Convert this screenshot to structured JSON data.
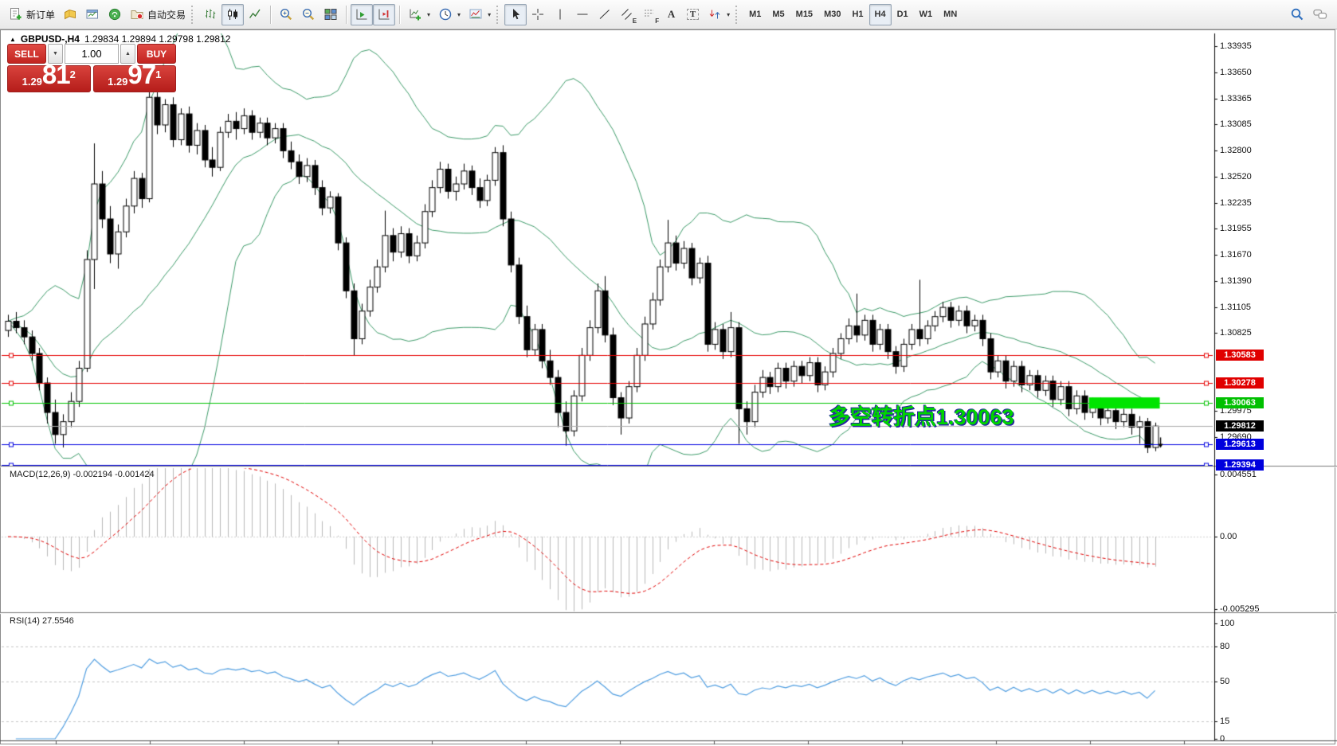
{
  "toolbar": {
    "new_order_label": "新订单",
    "autotrading_label": "自动交易",
    "timeframes": [
      "M1",
      "M5",
      "M15",
      "M30",
      "H1",
      "H4",
      "D1",
      "W1",
      "MN"
    ],
    "active_timeframe": "H4"
  },
  "glyphs": {
    "collapse": "▲",
    "spinner_up": "▲",
    "spinner_down": "▼",
    "caret": "▾",
    "tool_letters": {
      "channel": "E",
      "fibonacci": "F",
      "text": "A",
      "label": "T"
    }
  },
  "chart": {
    "title_symbol": "GBPUSD-,H4",
    "title_ohlc": "1.29834 1.29894 1.29798 1.29812"
  },
  "trade_panel": {
    "sell_label": "SELL",
    "buy_label": "BUY",
    "volume": "1.00",
    "sell_price_small": "1.29",
    "sell_price_big": "81",
    "sell_price_sup": "2",
    "buy_price_small": "1.29",
    "buy_price_big": "97",
    "buy_price_sup": "1"
  },
  "indicators": {
    "macd": {
      "name": "MACD(12,26,9)",
      "value_main": "-0.002194",
      "value_signal": "-0.001424"
    },
    "rsi": {
      "name": "RSI(14)",
      "value": "27.5546"
    }
  },
  "annotation": {
    "text": "多空转折点1.30063",
    "color": "#00d400"
  },
  "axis": {
    "price_ticks": [
      {
        "value": 1.33935,
        "label": "1.33935"
      },
      {
        "value": 1.3365,
        "label": "1.33650"
      },
      {
        "value": 1.33365,
        "label": "1.33365"
      },
      {
        "value": 1.33085,
        "label": "1.33085"
      },
      {
        "value": 1.328,
        "label": "1.32800"
      },
      {
        "value": 1.3252,
        "label": "1.32520"
      },
      {
        "value": 1.32235,
        "label": "1.32235"
      },
      {
        "value": 1.31955,
        "label": "1.31955"
      },
      {
        "value": 1.3167,
        "label": "1.31670"
      },
      {
        "value": 1.3139,
        "label": "1.31390"
      },
      {
        "value": 1.31105,
        "label": "1.31105"
      },
      {
        "value": 1.30825,
        "label": "1.30825"
      },
      {
        "value": 1.29975,
        "label": "1.29975"
      },
      {
        "value": 1.2969,
        "label": "1.29690"
      }
    ],
    "macd_ticks": [
      {
        "value": 0.004551,
        "label": "0.004551"
      },
      {
        "value": 0,
        "label": "0.00"
      },
      {
        "value": -0.005295,
        "label": "-0.005295"
      }
    ],
    "rsi_ticks": [
      {
        "value": 100,
        "label": "100"
      },
      {
        "value": 80,
        "label": "80"
      },
      {
        "value": 50,
        "label": "50"
      },
      {
        "value": 15,
        "label": "15"
      },
      {
        "value": 0,
        "label": "0"
      }
    ]
  },
  "chart_data": {
    "type": "candlestick",
    "symbol": "GBPUSD-",
    "period": "H4",
    "current_bid": 1.29812,
    "current_ask_display": "1.29971",
    "ohlc_current_bar": {
      "open": 1.29834,
      "high": 1.29894,
      "low": 1.29798,
      "close": 1.29812
    },
    "overlays": {
      "bollinger": {
        "period": 20,
        "deviation": 2,
        "color": "#3c9a68"
      }
    },
    "levels": [
      {
        "price": 1.30583,
        "color": "#e60000",
        "label": "1.30583",
        "label_bg": "#e00000",
        "kind": "resistance"
      },
      {
        "price": 1.30278,
        "color": "#e60000",
        "label": "1.30278",
        "label_bg": "#e00000",
        "kind": "resistance"
      },
      {
        "price": 1.30063,
        "color": "#00c300",
        "label": "1.30063",
        "label_bg": "#00c000",
        "kind": "pivot"
      },
      {
        "price": 1.29812,
        "color": "#ababab",
        "label": "1.29812",
        "label_bg": "#000000",
        "kind": "current-price"
      },
      {
        "price": 1.29613,
        "color": "#0000e0",
        "label": "1.29613",
        "label_bg": "#0000dd",
        "kind": "support"
      },
      {
        "price": 1.29394,
        "color": "#0000e0",
        "label": "1.29394",
        "label_bg": "#0000dd",
        "kind": "support"
      }
    ],
    "highlight_box": {
      "price": 1.30063,
      "from_candle": 138,
      "to_candle": 146,
      "color": "#00e400"
    },
    "marker": {
      "type": "arrow-down",
      "candle": 146,
      "price": 1.2962
    },
    "macd": {
      "params": [
        12,
        26,
        9
      ],
      "current_main": -0.002194,
      "current_signal": -0.001424,
      "range": [
        -0.005295,
        0.004551
      ],
      "histogram_color": "#b9b9b9",
      "signal_color": "#e00000"
    },
    "rsi": {
      "period": 14,
      "current": 27.5546,
      "range": [
        0,
        100
      ],
      "levels": [
        80,
        50,
        15
      ],
      "color": "#4f9de0"
    },
    "candles": [
      [
        1.3085,
        1.3102,
        1.3078,
        1.3095
      ],
      [
        1.3095,
        1.3105,
        1.3082,
        1.3088
      ],
      [
        1.3088,
        1.3096,
        1.307,
        1.3078
      ],
      [
        1.3078,
        1.3085,
        1.3052,
        1.306
      ],
      [
        1.306,
        1.3066,
        1.302,
        1.3028
      ],
      [
        1.3028,
        1.3034,
        1.2984,
        1.2996
      ],
      [
        1.2996,
        1.301,
        1.2962,
        1.2972
      ],
      [
        1.2972,
        1.2994,
        1.2958,
        1.2986
      ],
      [
        1.2986,
        1.3018,
        1.298,
        1.3008
      ],
      [
        1.3008,
        1.3052,
        1.3002,
        1.3044
      ],
      [
        1.3044,
        1.3172,
        1.304,
        1.3162
      ],
      [
        1.3162,
        1.3288,
        1.313,
        1.3244
      ],
      [
        1.3244,
        1.3258,
        1.3196,
        1.3206
      ],
      [
        1.3206,
        1.322,
        1.3158,
        1.3168
      ],
      [
        1.3168,
        1.32,
        1.3152,
        1.3192
      ],
      [
        1.3192,
        1.3228,
        1.3186,
        1.322
      ],
      [
        1.322,
        1.3258,
        1.3212,
        1.325
      ],
      [
        1.325,
        1.3256,
        1.3218,
        1.3228
      ],
      [
        1.3228,
        1.3347,
        1.3224,
        1.3338
      ],
      [
        1.3338,
        1.3344,
        1.3298,
        1.3308
      ],
      [
        1.3308,
        1.3336,
        1.33,
        1.333
      ],
      [
        1.333,
        1.3338,
        1.3284,
        1.3292
      ],
      [
        1.3292,
        1.3326,
        1.3286,
        1.332
      ],
      [
        1.332,
        1.3328,
        1.3278,
        1.3286
      ],
      [
        1.3286,
        1.331,
        1.3276,
        1.3302
      ],
      [
        1.3302,
        1.3308,
        1.3262,
        1.327
      ],
      [
        1.327,
        1.3284,
        1.3252,
        1.3262
      ],
      [
        1.3262,
        1.3306,
        1.3258,
        1.33
      ],
      [
        1.33,
        1.332,
        1.3294,
        1.3312
      ],
      [
        1.3312,
        1.3322,
        1.3292,
        1.3304
      ],
      [
        1.3304,
        1.3326,
        1.3298,
        1.3318
      ],
      [
        1.3318,
        1.3324,
        1.3292,
        1.33
      ],
      [
        1.33,
        1.3316,
        1.3294,
        1.331
      ],
      [
        1.331,
        1.3316,
        1.3286,
        1.3294
      ],
      [
        1.3294,
        1.331,
        1.3288,
        1.3304
      ],
      [
        1.3304,
        1.331,
        1.3272,
        1.328
      ],
      [
        1.328,
        1.329,
        1.326,
        1.3268
      ],
      [
        1.3268,
        1.3276,
        1.3244,
        1.3252
      ],
      [
        1.3252,
        1.3272,
        1.3246,
        1.3264
      ],
      [
        1.3264,
        1.327,
        1.3232,
        1.324
      ],
      [
        1.324,
        1.3248,
        1.321,
        1.3218
      ],
      [
        1.3218,
        1.3236,
        1.3212,
        1.323
      ],
      [
        1.323,
        1.3234,
        1.3172,
        1.318
      ],
      [
        1.318,
        1.3186,
        1.312,
        1.3128
      ],
      [
        1.3128,
        1.3136,
        1.3058,
        1.3076
      ],
      [
        1.3076,
        1.3114,
        1.307,
        1.3106
      ],
      [
        1.3106,
        1.314,
        1.31,
        1.3132
      ],
      [
        1.3132,
        1.3162,
        1.3126,
        1.3154
      ],
      [
        1.3154,
        1.3215,
        1.3148,
        1.3188
      ],
      [
        1.3188,
        1.3196,
        1.316,
        1.317
      ],
      [
        1.317,
        1.3198,
        1.3164,
        1.319
      ],
      [
        1.319,
        1.3196,
        1.3158,
        1.3166
      ],
      [
        1.3166,
        1.3188,
        1.316,
        1.318
      ],
      [
        1.318,
        1.3222,
        1.3174,
        1.3214
      ],
      [
        1.3214,
        1.3248,
        1.3208,
        1.324
      ],
      [
        1.324,
        1.3268,
        1.3234,
        1.326
      ],
      [
        1.326,
        1.3266,
        1.3228,
        1.3236
      ],
      [
        1.3236,
        1.3252,
        1.3226,
        1.3244
      ],
      [
        1.3244,
        1.3266,
        1.3238,
        1.3258
      ],
      [
        1.3258,
        1.3264,
        1.3232,
        1.324
      ],
      [
        1.324,
        1.325,
        1.3218,
        1.3226
      ],
      [
        1.3226,
        1.3254,
        1.322,
        1.3248
      ],
      [
        1.3248,
        1.3284,
        1.3242,
        1.3278
      ],
      [
        1.3278,
        1.3286,
        1.3198,
        1.3206
      ],
      [
        1.3206,
        1.3214,
        1.3148,
        1.3156
      ],
      [
        1.3156,
        1.3164,
        1.3092,
        1.31
      ],
      [
        1.31,
        1.3112,
        1.3056,
        1.3064
      ],
      [
        1.3064,
        1.3092,
        1.3058,
        1.3086
      ],
      [
        1.3086,
        1.3092,
        1.3044,
        1.3052
      ],
      [
        1.3052,
        1.3064,
        1.3026,
        1.3034
      ],
      [
        1.3034,
        1.3042,
        1.298,
        1.2996
      ],
      [
        1.2996,
        1.3008,
        1.296,
        1.2976
      ],
      [
        1.2976,
        1.302,
        1.297,
        1.3014
      ],
      [
        1.3014,
        1.3066,
        1.3008,
        1.3058
      ],
      [
        1.3058,
        1.3096,
        1.3052,
        1.3088
      ],
      [
        1.3088,
        1.3136,
        1.3082,
        1.3128
      ],
      [
        1.3128,
        1.3144,
        1.3072,
        1.308
      ],
      [
        1.308,
        1.3088,
        1.3004,
        1.3012
      ],
      [
        1.3012,
        1.3018,
        1.2972,
        1.299
      ],
      [
        1.299,
        1.303,
        1.2984,
        1.3024
      ],
      [
        1.3024,
        1.3066,
        1.3018,
        1.3058
      ],
      [
        1.3058,
        1.31,
        1.3052,
        1.3092
      ],
      [
        1.3092,
        1.3126,
        1.3086,
        1.3118
      ],
      [
        1.3118,
        1.3162,
        1.3112,
        1.3154
      ],
      [
        1.3154,
        1.3205,
        1.3148,
        1.318
      ],
      [
        1.318,
        1.3188,
        1.315,
        1.3158
      ],
      [
        1.3158,
        1.3182,
        1.3152,
        1.3174
      ],
      [
        1.3174,
        1.318,
        1.3134,
        1.3142
      ],
      [
        1.3142,
        1.3164,
        1.3136,
        1.3158
      ],
      [
        1.3158,
        1.3166,
        1.3062,
        1.307
      ],
      [
        1.307,
        1.3094,
        1.3064,
        1.3086
      ],
      [
        1.3086,
        1.3092,
        1.3054,
        1.3062
      ],
      [
        1.3062,
        1.3105,
        1.3056,
        1.3088
      ],
      [
        1.3088,
        1.3094,
        1.2962,
        1.3
      ],
      [
        1.3,
        1.3008,
        1.2972,
        1.2986
      ],
      [
        1.2986,
        1.3026,
        1.298,
        1.3018
      ],
      [
        1.3018,
        1.3042,
        1.3012,
        1.3034
      ],
      [
        1.3034,
        1.304,
        1.3016,
        1.3024
      ],
      [
        1.3024,
        1.305,
        1.3018,
        1.3044
      ],
      [
        1.3044,
        1.305,
        1.3022,
        1.303
      ],
      [
        1.303,
        1.3052,
        1.3024,
        1.3046
      ],
      [
        1.3046,
        1.3052,
        1.3028,
        1.3036
      ],
      [
        1.3036,
        1.3056,
        1.303,
        1.305
      ],
      [
        1.305,
        1.3056,
        1.3018,
        1.3026
      ],
      [
        1.3026,
        1.3046,
        1.302,
        1.304
      ],
      [
        1.304,
        1.3066,
        1.3034,
        1.306
      ],
      [
        1.306,
        1.3082,
        1.3054,
        1.3076
      ],
      [
        1.3076,
        1.3098,
        1.307,
        1.309
      ],
      [
        1.309,
        1.3125,
        1.3072,
        1.308
      ],
      [
        1.308,
        1.3102,
        1.3074,
        1.3096
      ],
      [
        1.3096,
        1.3102,
        1.3062,
        1.307
      ],
      [
        1.307,
        1.3092,
        1.3064,
        1.3086
      ],
      [
        1.3086,
        1.3092,
        1.3054,
        1.3062
      ],
      [
        1.3062,
        1.3068,
        1.3038,
        1.3046
      ],
      [
        1.3046,
        1.3076,
        1.304,
        1.307
      ],
      [
        1.307,
        1.3092,
        1.3064,
        1.3086
      ],
      [
        1.3086,
        1.314,
        1.3068,
        1.3076
      ],
      [
        1.3076,
        1.3096,
        1.307,
        1.309
      ],
      [
        1.309,
        1.3106,
        1.3084,
        1.31
      ],
      [
        1.31,
        1.3116,
        1.3094,
        1.311
      ],
      [
        1.311,
        1.3116,
        1.3088,
        1.3096
      ],
      [
        1.3096,
        1.3112,
        1.309,
        1.3106
      ],
      [
        1.3106,
        1.3112,
        1.3082,
        1.309
      ],
      [
        1.309,
        1.3102,
        1.3084,
        1.3096
      ],
      [
        1.3096,
        1.3102,
        1.3068,
        1.3076
      ],
      [
        1.3076,
        1.3082,
        1.3032,
        1.304
      ],
      [
        1.304,
        1.3058,
        1.3034,
        1.3052
      ],
      [
        1.3052,
        1.3058,
        1.3022,
        1.303
      ],
      [
        1.303,
        1.3052,
        1.3024,
        1.3046
      ],
      [
        1.3046,
        1.3052,
        1.3018,
        1.3026
      ],
      [
        1.3026,
        1.3042,
        1.302,
        1.3036
      ],
      [
        1.3036,
        1.3042,
        1.3012,
        1.302
      ],
      [
        1.302,
        1.3036,
        1.3014,
        1.303
      ],
      [
        1.303,
        1.3036,
        1.3002,
        1.301
      ],
      [
        1.301,
        1.303,
        1.3004,
        1.3024
      ],
      [
        1.3024,
        1.303,
        1.2992,
        1.3
      ],
      [
        1.3,
        1.302,
        1.2994,
        1.3014
      ],
      [
        1.3014,
        1.302,
        1.2988,
        1.2996
      ],
      [
        1.2996,
        1.3012,
        1.299,
        1.3006
      ],
      [
        1.3006,
        1.3012,
        1.2982,
        1.299
      ],
      [
        1.299,
        1.3004,
        1.2984,
        1.2998
      ],
      [
        1.2998,
        1.3004,
        1.2978,
        1.2986
      ],
      [
        1.2986,
        1.3,
        1.298,
        1.2994
      ],
      [
        1.2994,
        1.3,
        1.2972,
        1.298
      ],
      [
        1.298,
        1.2992,
        1.2962,
        1.2986
      ],
      [
        1.2986,
        1.299,
        1.2952,
        1.2958
      ],
      [
        1.2958,
        1.2985,
        1.2954,
        1.29812
      ]
    ]
  }
}
